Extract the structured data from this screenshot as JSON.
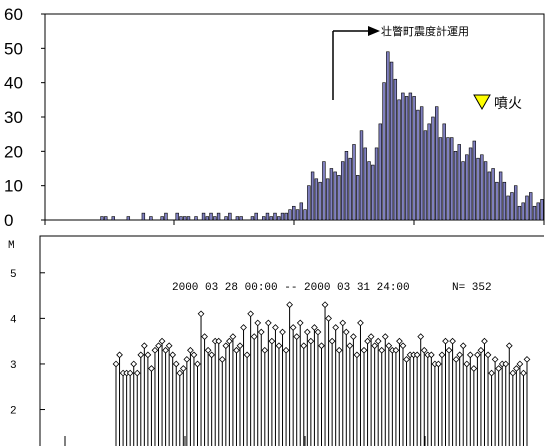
{
  "chart_data": [
    {
      "type": "bar",
      "ylim": [
        0,
        60
      ],
      "yticks": [
        "0",
        "10",
        "20",
        "30",
        "40",
        "50",
        "60"
      ],
      "annotations": {
        "arrow_label": "壮瞥町震度計運用",
        "eruption_label": "噴火",
        "eruption_marker_color": "#ffff00"
      },
      "bar_color": "#8080c0",
      "values": [
        1,
        1,
        0,
        1,
        0,
        0,
        0,
        1,
        0,
        0,
        0,
        2,
        0,
        1,
        0,
        0,
        1,
        2,
        0,
        0,
        2,
        1,
        1,
        1,
        0,
        1,
        0,
        2,
        1,
        2,
        1,
        2,
        0,
        1,
        2,
        0,
        1,
        1,
        0,
        0,
        1,
        2,
        0,
        1,
        2,
        1,
        2,
        1,
        2,
        2,
        3,
        4,
        3,
        5,
        3,
        10,
        14,
        12,
        11,
        17,
        12,
        15,
        14,
        13,
        17,
        20,
        18,
        22,
        13,
        26,
        21,
        17,
        16,
        21,
        28,
        40,
        49,
        46,
        41,
        35,
        37,
        36,
        37,
        36,
        32,
        33,
        26,
        28,
        30,
        33,
        24,
        28,
        24,
        24,
        20,
        22,
        17,
        19,
        21,
        23,
        18,
        19,
        17,
        14,
        15,
        11,
        14,
        11,
        7,
        8,
        10,
        4,
        5,
        7,
        8,
        4,
        5,
        6
      ]
    },
    {
      "type": "scatter",
      "ylabel": "M",
      "yticks": [
        "2",
        "3",
        "4",
        "5"
      ],
      "period_label": "2000 03 28 00:00 -- 2000 03 31 24:00",
      "count_label": "N= 352",
      "values": [
        3.0,
        3.2,
        2.8,
        2.8,
        2.8,
        3.0,
        2.8,
        3.2,
        3.4,
        3.2,
        2.9,
        3.3,
        3.4,
        3.5,
        3.3,
        3.4,
        3.2,
        3.0,
        2.8,
        2.9,
        3.1,
        3.3,
        3.2,
        3.0,
        4.1,
        3.6,
        3.3,
        3.2,
        3.5,
        3.5,
        3.1,
        3.4,
        3.5,
        3.6,
        3.3,
        3.4,
        3.8,
        3.2,
        4.1,
        3.6,
        3.9,
        3.7,
        3.3,
        3.9,
        3.5,
        3.8,
        3.4,
        3.7,
        3.3,
        4.3,
        3.8,
        3.6,
        3.9,
        3.4,
        3.7,
        3.5,
        3.8,
        3.7,
        3.4,
        4.3,
        4.0,
        3.5,
        3.8,
        3.3,
        3.9,
        3.7,
        3.4,
        3.6,
        3.2,
        3.9,
        3.3,
        3.5,
        3.6,
        3.4,
        3.5,
        3.3,
        3.6,
        3.4,
        3.3,
        3.3,
        3.5,
        3.4,
        3.1,
        3.2,
        3.2,
        3.2,
        3.6,
        3.3,
        3.2,
        3.2,
        3.0,
        3.0,
        3.2,
        3.5,
        3.3,
        3.5,
        3.1,
        3.2,
        3.4,
        3.0,
        3.2,
        2.9,
        3.2,
        3.3,
        3.5,
        3.2,
        2.8,
        3.1,
        2.9,
        3.0,
        3.0,
        3.4,
        2.8,
        2.9,
        3.0,
        2.8,
        3.1
      ]
    }
  ]
}
